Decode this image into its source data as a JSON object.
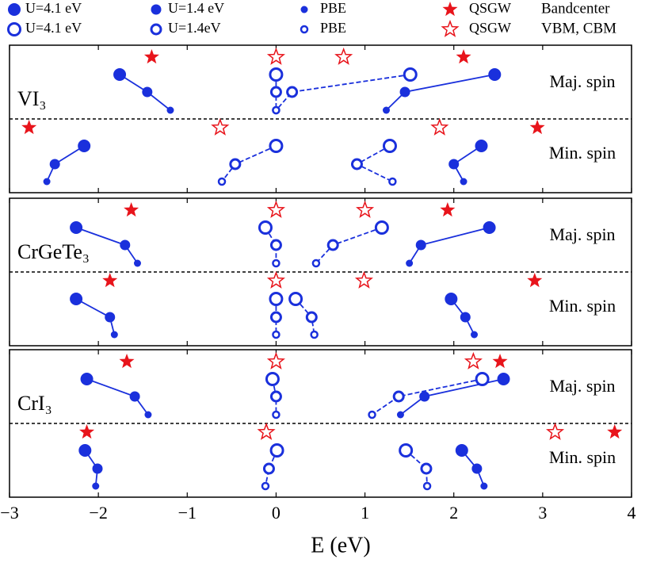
{
  "chart_data": {
    "type": "scatter",
    "xlabel": "E (eV)",
    "xlim": [
      -3,
      4
    ],
    "xticks": [
      {
        "value": -3,
        "label": "−3"
      },
      {
        "value": -2,
        "label": "−2"
      },
      {
        "value": -1,
        "label": "−1"
      },
      0,
      1,
      2,
      3,
      4
    ],
    "colors": {
      "dft": "#1a30dc",
      "qsgw": "#e8141b"
    },
    "legend": [
      {
        "label": "Bandcenter",
        "entries": [
          "U=4.1 eV",
          "U=1.4 eV",
          "PBE",
          "QSGW"
        ]
      },
      {
        "label": "VBM, CBM",
        "entries": [
          "U=4.1 eV",
          "U=1.4eV",
          "PBE",
          "QSGW"
        ]
      }
    ],
    "panels": [
      {
        "label": "VI₃",
        "spins": [
          {
            "label": "Maj. spin",
            "bandcenter": [
              [
                -1.76,
                -1.45,
                -1.19
              ],
              [
                2.46,
                1.45,
                1.24
              ]
            ],
            "vbm_cbm": [
              [
                0,
                0,
                0
              ],
              [
                1.51,
                0.18,
                0.0
              ]
            ],
            "qsgw_bandcenter": [
              -1.4,
              2.11
            ],
            "qsgw_vbm_cbm": [
              0,
              0.76
            ]
          },
          {
            "label": "Min. spin",
            "bandcenter": [
              [
                -2.16,
                -2.49,
                -2.58
              ],
              [
                2.31,
                2.0,
                2.11
              ]
            ],
            "vbm_cbm": [
              [
                0,
                -0.46,
                -0.61
              ],
              [
                1.28,
                0.91,
                1.31
              ]
            ],
            "qsgw_bandcenter": [
              -2.78,
              2.94
            ],
            "qsgw_vbm_cbm": [
              -0.63,
              1.84
            ]
          }
        ]
      },
      {
        "label": "CrGeTe₃",
        "spins": [
          {
            "label": "Maj. spin",
            "bandcenter": [
              [
                -2.25,
                -1.7,
                -1.56
              ],
              [
                2.4,
                1.63,
                1.5
              ]
            ],
            "vbm_cbm": [
              [
                -0.12,
                0,
                0
              ],
              [
                1.19,
                0.64,
                0.45
              ]
            ],
            "qsgw_bandcenter": [
              -1.63,
              1.93
            ],
            "qsgw_vbm_cbm": [
              0,
              1.0
            ]
          },
          {
            "label": "Min. spin",
            "bandcenter": [
              [
                -2.25,
                -1.87,
                -1.82
              ],
              [
                1.97,
                2.13,
                2.23
              ]
            ],
            "vbm_cbm": [
              [
                0,
                0,
                0
              ],
              [
                0.22,
                0.4,
                0.43
              ]
            ],
            "qsgw_bandcenter": [
              -1.87,
              2.91
            ],
            "qsgw_vbm_cbm": [
              0,
              0.99
            ]
          }
        ]
      },
      {
        "label": "CrI₃",
        "spins": [
          {
            "label": "Maj. spin",
            "bandcenter": [
              [
                -2.13,
                -1.59,
                -1.44
              ],
              [
                2.56,
                1.67,
                1.4
              ]
            ],
            "vbm_cbm": [
              [
                -0.04,
                0,
                0
              ],
              [
                2.32,
                1.38,
                1.08
              ]
            ],
            "qsgw_bandcenter": [
              -1.68,
              2.52
            ],
            "qsgw_vbm_cbm": [
              0,
              2.22
            ]
          },
          {
            "label": "Min. spin",
            "bandcenter": [
              [
                -2.15,
                -2.01,
                -2.03
              ],
              [
                2.09,
                2.26,
                2.34
              ]
            ],
            "vbm_cbm": [
              [
                0.01,
                -0.08,
                -0.12
              ],
              [
                1.46,
                1.69,
                1.7
              ]
            ],
            "qsgw_bandcenter": [
              -2.13,
              3.81
            ],
            "qsgw_vbm_cbm": [
              -0.11,
              3.14
            ]
          }
        ]
      }
    ]
  }
}
